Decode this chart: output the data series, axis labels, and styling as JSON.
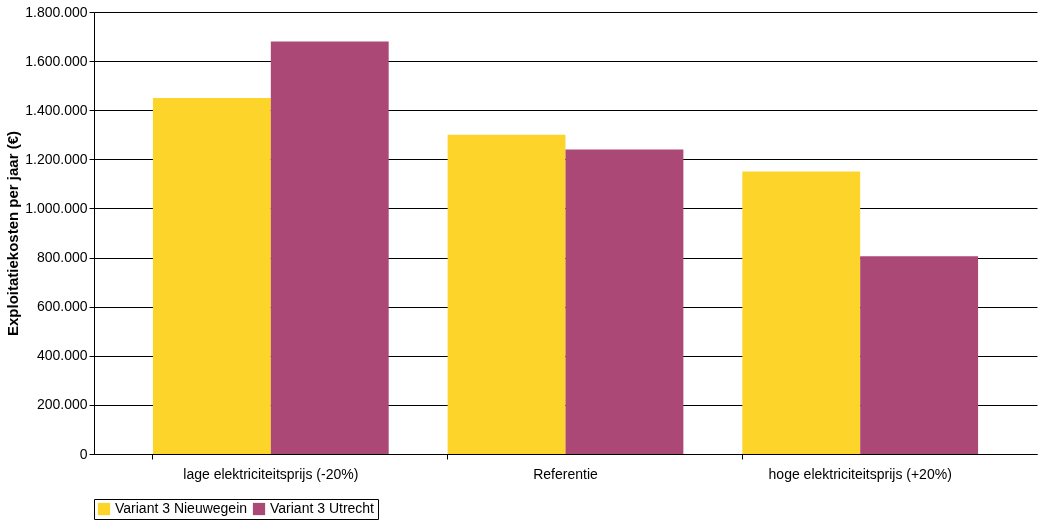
{
  "chart_data": {
    "type": "bar",
    "ylabel": "Exploitatiekosten per jaar (€)",
    "categories": [
      "lage elektriciteitsprijs (-20%)",
      "Referentie",
      "hoge elektriciteitsprijs (+20%)"
    ],
    "series": [
      {
        "name": "Variant 3 Nieuwegein",
        "color": "#fdd42a",
        "values": [
          1450000,
          1300000,
          1150000
        ]
      },
      {
        "name": "Variant 3 Utrecht",
        "color": "#ab4876",
        "values": [
          1680000,
          1240000,
          805000
        ]
      }
    ],
    "ylim": [
      0,
      1800000
    ],
    "yticks": [
      {
        "value": 0,
        "label": "0"
      },
      {
        "value": 200000,
        "label": "200.000"
      },
      {
        "value": 400000,
        "label": "400.000"
      },
      {
        "value": 600000,
        "label": "600.000"
      },
      {
        "value": 800000,
        "label": "800.000"
      },
      {
        "value": 1000000,
        "label": "1.000.000"
      },
      {
        "value": 1200000,
        "label": "1.200.000"
      },
      {
        "value": 1400000,
        "label": "1.400.000"
      },
      {
        "value": 1600000,
        "label": "1.600.000"
      },
      {
        "value": 1800000,
        "label": "1.800.000"
      }
    ],
    "grid": "y",
    "legend": "bottom"
  }
}
